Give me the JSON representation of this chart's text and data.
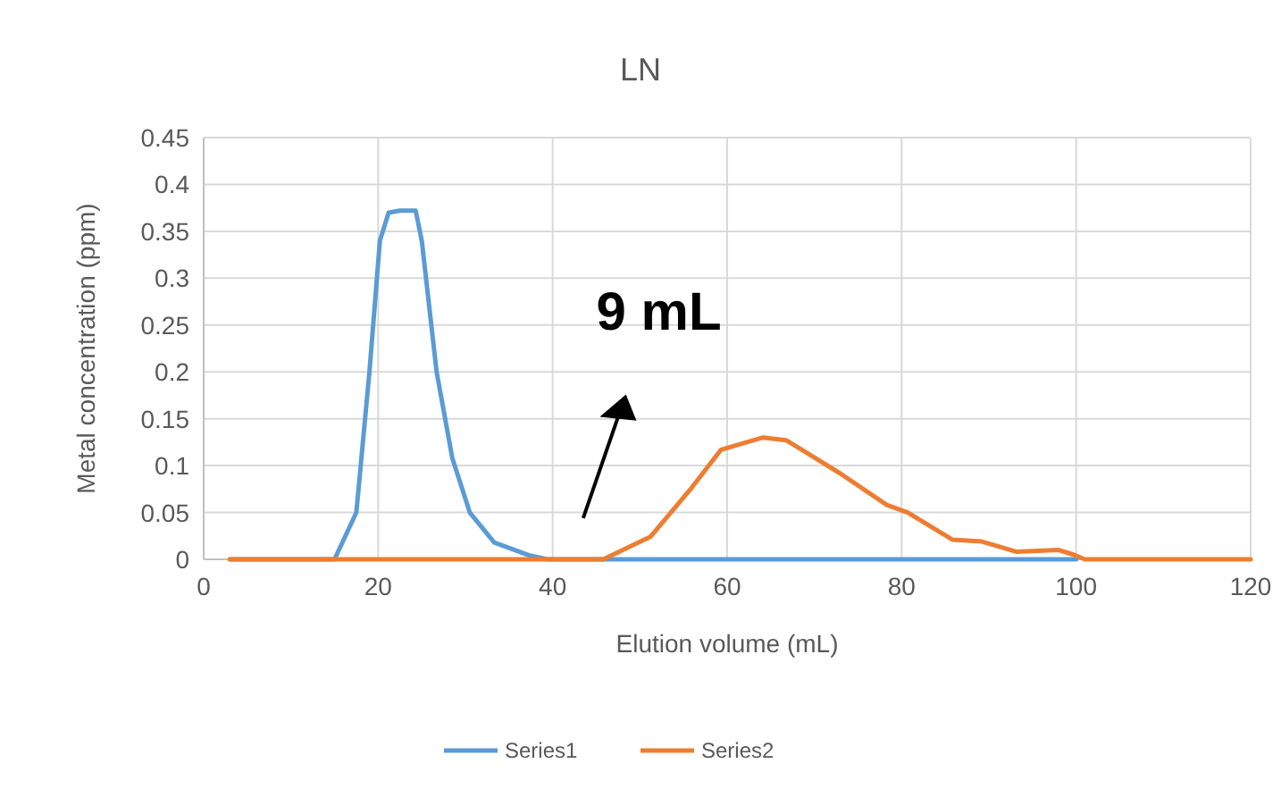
{
  "chart_data": {
    "type": "line",
    "title": "LN",
    "xlabel": "Elution volume (mL)",
    "ylabel": "Metal concentration (ppm)",
    "xlim": [
      0,
      120
    ],
    "xticks": [
      0,
      20,
      40,
      60,
      80,
      100,
      120
    ],
    "ylim": [
      0,
      0.45
    ],
    "yticks": [
      0,
      0.05,
      0.1,
      0.15,
      0.2,
      0.25,
      0.3,
      0.35,
      0.4,
      0.45
    ],
    "grid": true,
    "legend": "bottom",
    "marker": "none",
    "line_style": "solid",
    "annotations": [
      "9 mL"
    ],
    "series": [
      {
        "name": "Series1",
        "color": "#5b9bd5",
        "x": [
          3,
          10,
          15,
          17.5,
          19,
          20.2,
          21.2,
          22.5,
          24.3,
          25,
          26.7,
          28.5,
          30.5,
          33.3,
          37.4,
          39.4,
          50,
          100
        ],
        "values": [
          0,
          0,
          0,
          0.05,
          0.2,
          0.34,
          0.37,
          0.372,
          0.372,
          0.34,
          0.2,
          0.108,
          0.05,
          0.018,
          0.004,
          0,
          0,
          0
        ]
      },
      {
        "name": "Series2",
        "color": "#ed7d31",
        "x": [
          3,
          20,
          45.8,
          51.2,
          55.9,
          59.3,
          64.1,
          66.8,
          72.9,
          78.3,
          80.7,
          85.8,
          89.2,
          93.2,
          98,
          99.7,
          101,
          120
        ],
        "values": [
          0,
          0,
          0,
          0.024,
          0.076,
          0.117,
          0.13,
          0.127,
          0.092,
          0.058,
          0.05,
          0.021,
          0.019,
          0.008,
          0.01,
          0.005,
          0,
          0
        ]
      }
    ]
  }
}
